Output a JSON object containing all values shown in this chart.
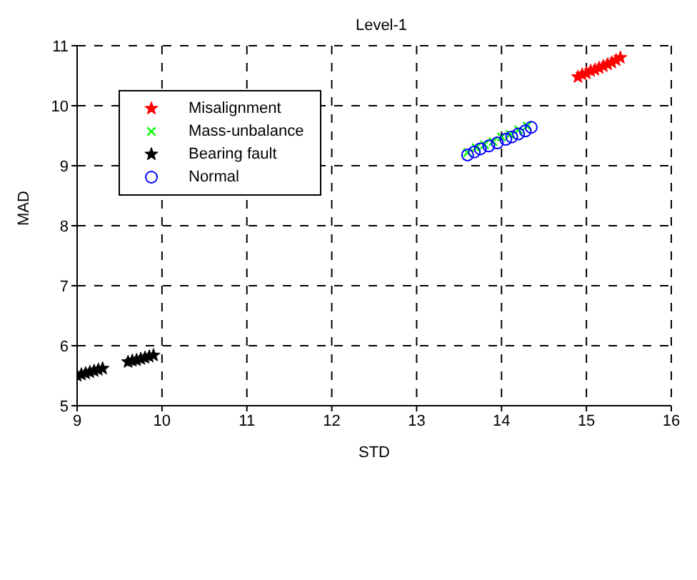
{
  "chart_data": {
    "type": "scatter",
    "title": "Level-1",
    "xlabel": "STD",
    "ylabel": "MAD",
    "xlim": [
      9,
      16
    ],
    "ylim": [
      5,
      11
    ],
    "xticks": [
      9,
      10,
      11,
      12,
      13,
      14,
      15,
      16
    ],
    "yticks": [
      5,
      6,
      7,
      8,
      9,
      10,
      11
    ],
    "grid": true,
    "legend": "top left",
    "series": [
      {
        "name": "Misalignment",
        "color": "#ff0000",
        "marker": "star",
        "x": [
          14.9,
          14.95,
          15.0,
          15.05,
          15.1,
          15.15,
          15.2,
          15.25,
          15.3,
          15.35,
          15.4
        ],
        "values": [
          10.48,
          10.52,
          10.54,
          10.58,
          10.6,
          10.63,
          10.66,
          10.69,
          10.72,
          10.76,
          10.8
        ]
      },
      {
        "name": "Mass-unbalance",
        "color": "#00ff00",
        "marker": "cross",
        "x": [
          13.6,
          13.7,
          13.8,
          13.9,
          14.0,
          14.1,
          14.2,
          14.3
        ],
        "values": [
          9.22,
          9.3,
          9.35,
          9.4,
          9.48,
          9.52,
          9.6,
          9.66
        ]
      },
      {
        "name": "Bearing fault",
        "color": "#000000",
        "marker": "star",
        "x": [
          9.0,
          9.05,
          9.1,
          9.15,
          9.2,
          9.25,
          9.3,
          9.6,
          9.65,
          9.7,
          9.75,
          9.8,
          9.85,
          9.9
        ],
        "values": [
          5.5,
          5.52,
          5.54,
          5.56,
          5.58,
          5.6,
          5.62,
          5.73,
          5.75,
          5.76,
          5.78,
          5.8,
          5.82,
          5.84
        ]
      },
      {
        "name": "Normal",
        "color": "#0000ff",
        "marker": "circle",
        "x": [
          13.6,
          13.68,
          13.75,
          13.85,
          13.95,
          14.05,
          14.12,
          14.2,
          14.28,
          14.35
        ],
        "values": [
          9.18,
          9.23,
          9.28,
          9.33,
          9.38,
          9.44,
          9.48,
          9.53,
          9.58,
          9.64
        ]
      }
    ]
  }
}
